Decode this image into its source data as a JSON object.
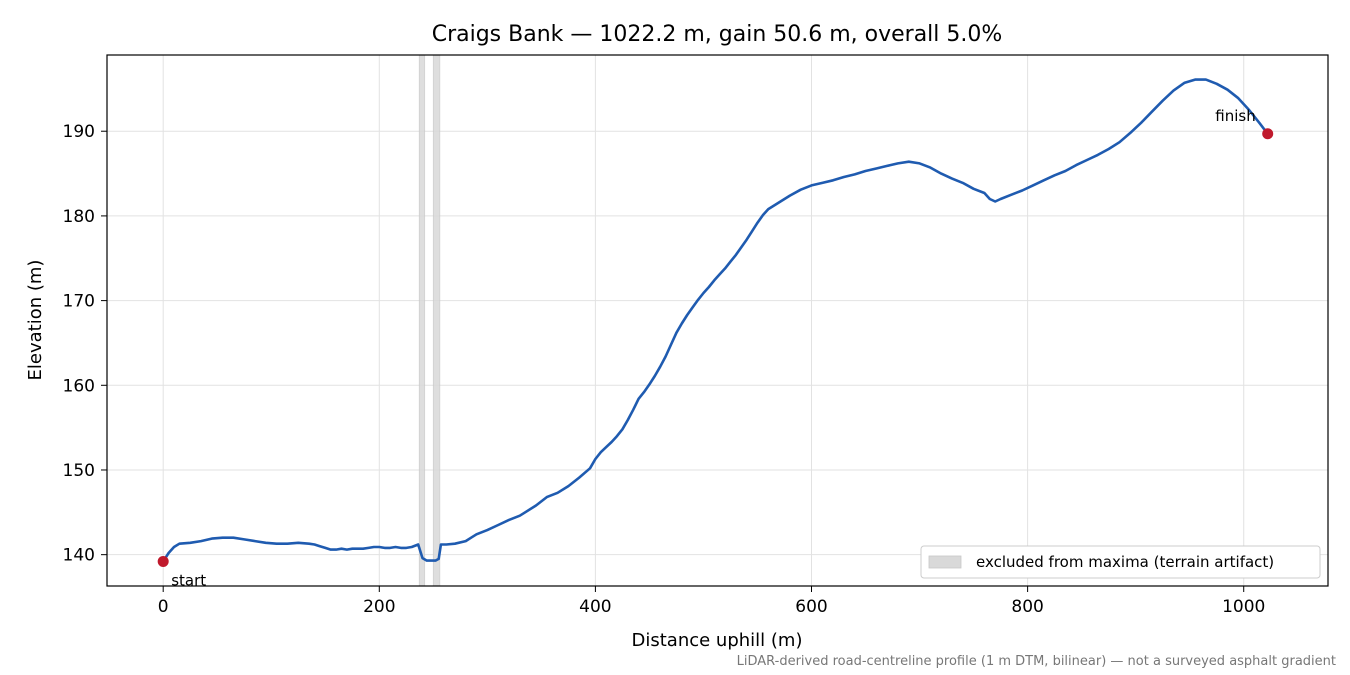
{
  "chart_data": {
    "type": "line",
    "title": "Craigs Bank — 1022.2 m, gain 50.6 m, overall 5.0%",
    "xlabel": "Distance uphill (m)",
    "ylabel": "Elevation (m)",
    "xlim": [
      -52,
      1078
    ],
    "ylim": [
      136.3,
      199.0
    ],
    "x_ticks": [
      0,
      200,
      400,
      600,
      800,
      1000
    ],
    "y_ticks": [
      140,
      150,
      160,
      170,
      180,
      190
    ],
    "grid": true,
    "series": [
      {
        "color": "#1f5bb0",
        "points": [
          [
            0,
            139.2
          ],
          [
            5,
            140.2
          ],
          [
            10,
            140.9
          ],
          [
            15,
            141.3
          ],
          [
            25,
            141.4
          ],
          [
            35,
            141.6
          ],
          [
            45,
            141.9
          ],
          [
            55,
            142.0
          ],
          [
            65,
            142.0
          ],
          [
            75,
            141.8
          ],
          [
            85,
            141.6
          ],
          [
            95,
            141.4
          ],
          [
            105,
            141.3
          ],
          [
            115,
            141.3
          ],
          [
            125,
            141.4
          ],
          [
            135,
            141.3
          ],
          [
            140,
            141.2
          ],
          [
            145,
            141.0
          ],
          [
            150,
            140.8
          ],
          [
            155,
            140.6
          ],
          [
            160,
            140.6
          ],
          [
            165,
            140.7
          ],
          [
            170,
            140.6
          ],
          [
            175,
            140.7
          ],
          [
            180,
            140.7
          ],
          [
            185,
            140.7
          ],
          [
            190,
            140.8
          ],
          [
            195,
            140.9
          ],
          [
            200,
            140.9
          ],
          [
            205,
            140.8
          ],
          [
            210,
            140.8
          ],
          [
            215,
            140.9
          ],
          [
            220,
            140.8
          ],
          [
            225,
            140.8
          ],
          [
            230,
            140.9
          ],
          [
            236,
            141.2
          ],
          [
            240,
            139.6
          ],
          [
            244,
            139.3
          ],
          [
            248,
            139.3
          ],
          [
            252,
            139.3
          ],
          [
            255,
            139.5
          ],
          [
            257,
            141.2
          ],
          [
            262,
            141.2
          ],
          [
            270,
            141.3
          ],
          [
            280,
            141.6
          ],
          [
            285,
            142.0
          ],
          [
            290,
            142.4
          ],
          [
            300,
            142.9
          ],
          [
            310,
            143.5
          ],
          [
            320,
            144.1
          ],
          [
            330,
            144.6
          ],
          [
            335,
            145.0
          ],
          [
            345,
            145.8
          ],
          [
            355,
            146.8
          ],
          [
            365,
            147.3
          ],
          [
            375,
            148.1
          ],
          [
            385,
            149.1
          ],
          [
            395,
            150.2
          ],
          [
            400,
            151.3
          ],
          [
            405,
            152.1
          ],
          [
            410,
            152.7
          ],
          [
            415,
            153.3
          ],
          [
            420,
            154.0
          ],
          [
            425,
            154.8
          ],
          [
            430,
            155.9
          ],
          [
            435,
            157.1
          ],
          [
            440,
            158.4
          ],
          [
            445,
            159.2
          ],
          [
            450,
            160.1
          ],
          [
            455,
            161.1
          ],
          [
            460,
            162.2
          ],
          [
            465,
            163.4
          ],
          [
            470,
            164.8
          ],
          [
            475,
            166.2
          ],
          [
            480,
            167.3
          ],
          [
            485,
            168.3
          ],
          [
            490,
            169.2
          ],
          [
            495,
            170.1
          ],
          [
            500,
            170.9
          ],
          [
            505,
            171.6
          ],
          [
            510,
            172.4
          ],
          [
            515,
            173.1
          ],
          [
            520,
            173.8
          ],
          [
            525,
            174.6
          ],
          [
            530,
            175.4
          ],
          [
            535,
            176.3
          ],
          [
            540,
            177.2
          ],
          [
            545,
            178.2
          ],
          [
            550,
            179.2
          ],
          [
            555,
            180.1
          ],
          [
            560,
            180.8
          ],
          [
            570,
            181.6
          ],
          [
            580,
            182.4
          ],
          [
            590,
            183.1
          ],
          [
            600,
            183.6
          ],
          [
            610,
            183.9
          ],
          [
            620,
            184.2
          ],
          [
            630,
            184.6
          ],
          [
            640,
            184.9
          ],
          [
            650,
            185.3
          ],
          [
            660,
            185.6
          ],
          [
            670,
            185.9
          ],
          [
            680,
            186.2
          ],
          [
            690,
            186.4
          ],
          [
            700,
            186.2
          ],
          [
            710,
            185.7
          ],
          [
            720,
            185.0
          ],
          [
            730,
            184.4
          ],
          [
            740,
            183.9
          ],
          [
            750,
            183.2
          ],
          [
            760,
            182.7
          ],
          [
            765,
            182.0
          ],
          [
            770,
            181.7
          ],
          [
            775,
            182.0
          ],
          [
            785,
            182.5
          ],
          [
            795,
            183.0
          ],
          [
            805,
            183.6
          ],
          [
            815,
            184.2
          ],
          [
            825,
            184.8
          ],
          [
            835,
            185.3
          ],
          [
            845,
            186.0
          ],
          [
            855,
            186.6
          ],
          [
            865,
            187.2
          ],
          [
            875,
            187.9
          ],
          [
            885,
            188.7
          ],
          [
            895,
            189.8
          ],
          [
            905,
            191.0
          ],
          [
            915,
            192.3
          ],
          [
            925,
            193.6
          ],
          [
            935,
            194.8
          ],
          [
            945,
            195.7
          ],
          [
            955,
            196.1
          ],
          [
            965,
            196.1
          ],
          [
            975,
            195.6
          ],
          [
            985,
            194.9
          ],
          [
            995,
            193.9
          ],
          [
            1005,
            192.5
          ],
          [
            1015,
            190.9
          ],
          [
            1022.2,
            189.7
          ]
        ]
      }
    ],
    "markers": [
      {
        "x": 0,
        "y": 139.2,
        "label": "start",
        "color": "#c0192c"
      },
      {
        "x": 1022.2,
        "y": 189.7,
        "label": "finish",
        "color": "#c0192c"
      }
    ],
    "excluded_bands": [
      [
        237,
        242
      ],
      [
        250,
        256
      ]
    ],
    "excluded_color": "#d9d9d9",
    "legend": {
      "label": "excluded from maxima (terrain artifact)",
      "position": "lower-right"
    },
    "footnote": "LiDAR-derived road-centreline profile (1 m DTM, bilinear) — not a surveyed asphalt gradient"
  }
}
